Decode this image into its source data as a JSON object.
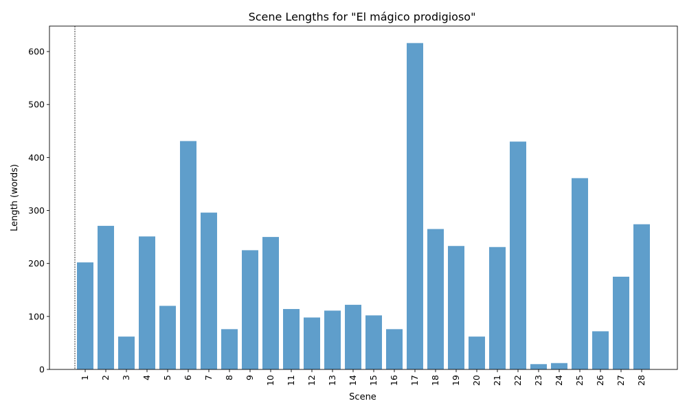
{
  "chart_data": {
    "type": "bar",
    "title": "Scene Lengths for \"El mágico prodigioso\"",
    "xlabel": "Scene",
    "ylabel": "Length (words)",
    "categories": [
      "1",
      "2",
      "3",
      "4",
      "5",
      "6",
      "7",
      "8",
      "9",
      "10",
      "11",
      "12",
      "13",
      "14",
      "15",
      "16",
      "17",
      "18",
      "19",
      "20",
      "21",
      "22",
      "23",
      "24",
      "25",
      "26",
      "27",
      "28"
    ],
    "values": [
      202,
      271,
      62,
      251,
      120,
      431,
      296,
      76,
      225,
      250,
      114,
      98,
      111,
      122,
      102,
      76,
      616,
      265,
      233,
      62,
      231,
      430,
      10,
      12,
      361,
      72,
      175,
      274
    ],
    "ylim": [
      0,
      648
    ],
    "yticks": [
      0,
      100,
      200,
      300,
      400,
      500,
      600
    ],
    "grid": false,
    "legend": "none",
    "bar_color": "#5f9ecb",
    "vertical_reference_line": {
      "style": "dashed",
      "before_category": "1"
    }
  }
}
